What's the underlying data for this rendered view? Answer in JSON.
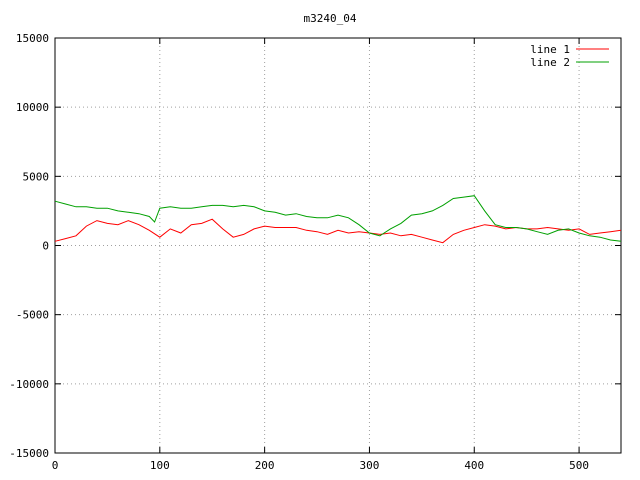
{
  "chart_data": {
    "type": "line",
    "title": "m3240_04",
    "xlabel": "",
    "ylabel": "",
    "xlim": [
      0,
      540
    ],
    "ylim": [
      -15000,
      15000
    ],
    "x_ticks": [
      0,
      100,
      200,
      300,
      400,
      500
    ],
    "y_ticks": [
      -15000,
      -10000,
      -5000,
      0,
      5000,
      10000,
      15000
    ],
    "grid": true,
    "legend_position": "top-right",
    "series": [
      {
        "name": "line 1",
        "color": "#ff0000",
        "points": [
          [
            0,
            300
          ],
          [
            10,
            500
          ],
          [
            20,
            700
          ],
          [
            30,
            1400
          ],
          [
            40,
            1800
          ],
          [
            50,
            1600
          ],
          [
            60,
            1500
          ],
          [
            70,
            1800
          ],
          [
            80,
            1500
          ],
          [
            90,
            1100
          ],
          [
            100,
            600
          ],
          [
            110,
            1200
          ],
          [
            120,
            900
          ],
          [
            130,
            1500
          ],
          [
            140,
            1600
          ],
          [
            150,
            1900
          ],
          [
            160,
            1200
          ],
          [
            170,
            600
          ],
          [
            180,
            800
          ],
          [
            190,
            1200
          ],
          [
            200,
            1400
          ],
          [
            210,
            1300
          ],
          [
            220,
            1300
          ],
          [
            230,
            1300
          ],
          [
            240,
            1100
          ],
          [
            250,
            1000
          ],
          [
            260,
            800
          ],
          [
            270,
            1100
          ],
          [
            280,
            900
          ],
          [
            290,
            1000
          ],
          [
            300,
            900
          ],
          [
            310,
            800
          ],
          [
            320,
            900
          ],
          [
            330,
            700
          ],
          [
            340,
            800
          ],
          [
            350,
            600
          ],
          [
            360,
            400
          ],
          [
            370,
            200
          ],
          [
            380,
            800
          ],
          [
            390,
            1100
          ],
          [
            400,
            1300
          ],
          [
            410,
            1500
          ],
          [
            420,
            1400
          ],
          [
            430,
            1200
          ],
          [
            440,
            1300
          ],
          [
            450,
            1200
          ],
          [
            460,
            1200
          ],
          [
            470,
            1300
          ],
          [
            480,
            1200
          ],
          [
            490,
            1100
          ],
          [
            500,
            1200
          ],
          [
            510,
            800
          ],
          [
            520,
            900
          ],
          [
            530,
            1000
          ],
          [
            540,
            1100
          ]
        ]
      },
      {
        "name": "line 2",
        "color": "#00a000",
        "points": [
          [
            0,
            3200
          ],
          [
            10,
            3000
          ],
          [
            20,
            2800
          ],
          [
            30,
            2800
          ],
          [
            40,
            2700
          ],
          [
            50,
            2700
          ],
          [
            60,
            2500
          ],
          [
            70,
            2400
          ],
          [
            80,
            2300
          ],
          [
            90,
            2100
          ],
          [
            95,
            1700
          ],
          [
            100,
            2700
          ],
          [
            110,
            2800
          ],
          [
            120,
            2700
          ],
          [
            130,
            2700
          ],
          [
            140,
            2800
          ],
          [
            150,
            2900
          ],
          [
            160,
            2900
          ],
          [
            170,
            2800
          ],
          [
            180,
            2900
          ],
          [
            190,
            2800
          ],
          [
            200,
            2500
          ],
          [
            210,
            2400
          ],
          [
            220,
            2200
          ],
          [
            230,
            2300
          ],
          [
            240,
            2100
          ],
          [
            250,
            2000
          ],
          [
            260,
            2000
          ],
          [
            270,
            2200
          ],
          [
            280,
            2000
          ],
          [
            290,
            1500
          ],
          [
            300,
            900
          ],
          [
            310,
            700
          ],
          [
            320,
            1200
          ],
          [
            330,
            1600
          ],
          [
            340,
            2200
          ],
          [
            350,
            2300
          ],
          [
            360,
            2500
          ],
          [
            370,
            2900
          ],
          [
            380,
            3400
          ],
          [
            390,
            3500
          ],
          [
            400,
            3600
          ],
          [
            410,
            2500
          ],
          [
            420,
            1500
          ],
          [
            430,
            1300
          ],
          [
            440,
            1300
          ],
          [
            450,
            1200
          ],
          [
            460,
            1000
          ],
          [
            470,
            800
          ],
          [
            480,
            1100
          ],
          [
            490,
            1200
          ],
          [
            500,
            900
          ],
          [
            510,
            700
          ],
          [
            520,
            600
          ],
          [
            530,
            400
          ],
          [
            540,
            300
          ]
        ]
      }
    ]
  }
}
